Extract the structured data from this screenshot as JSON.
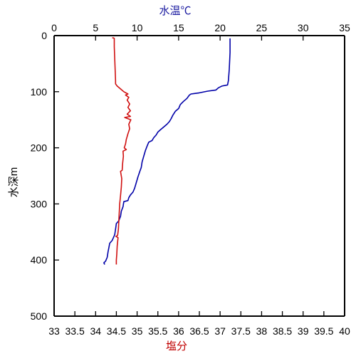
{
  "chart_data": {
    "type": "line",
    "top_axis": {
      "label": "水温℃",
      "label_color": "#1A1AA0",
      "range": [
        0,
        35
      ],
      "ticks": [
        "0",
        "5",
        "10",
        "15",
        "20",
        "25",
        "30",
        "35"
      ]
    },
    "bottom_axis": {
      "label": "塩分",
      "label_color": "#C00000",
      "range": [
        33,
        40
      ],
      "ticks": [
        "33",
        "33.5",
        "34",
        "34.5",
        "35",
        "35.5",
        "36",
        "36.5",
        "37",
        "37.5",
        "38",
        "38.5",
        "39",
        "39.5",
        "40"
      ]
    },
    "left_axis": {
      "label": "水深m",
      "range": [
        0,
        500
      ],
      "inverted": true,
      "ticks": [
        "0",
        "100",
        "200",
        "300",
        "400",
        "500"
      ]
    },
    "grid": false,
    "series": [
      {
        "axis": "top",
        "color": "#0000A8",
        "points": [
          [
            21.2,
            5
          ],
          [
            21.2,
            30
          ],
          [
            21.1,
            60
          ],
          [
            21.0,
            80
          ],
          [
            20.9,
            88
          ],
          [
            20.2,
            90
          ],
          [
            19.8,
            93
          ],
          [
            19.5,
            97
          ],
          [
            18.5,
            99
          ],
          [
            17.5,
            102
          ],
          [
            17.0,
            103
          ],
          [
            16.5,
            104
          ],
          [
            16.3,
            106
          ],
          [
            16.0,
            112
          ],
          [
            15.6,
            117
          ],
          [
            15.2,
            123
          ],
          [
            15.0,
            130
          ],
          [
            14.6,
            135
          ],
          [
            14.3,
            142
          ],
          [
            14.1,
            148
          ],
          [
            13.9,
            153
          ],
          [
            13.6,
            158
          ],
          [
            13.2,
            163
          ],
          [
            12.8,
            168
          ],
          [
            12.5,
            172
          ],
          [
            12.3,
            177
          ],
          [
            12.0,
            182
          ],
          [
            11.8,
            187
          ],
          [
            11.4,
            190
          ],
          [
            11.2,
            197
          ],
          [
            11.0,
            205
          ],
          [
            10.8,
            215
          ],
          [
            10.6,
            225
          ],
          [
            10.5,
            235
          ],
          [
            10.3,
            243
          ],
          [
            10.1,
            252
          ],
          [
            9.9,
            262
          ],
          [
            9.7,
            272
          ],
          [
            9.5,
            279
          ],
          [
            9.2,
            284
          ],
          [
            9.0,
            289
          ],
          [
            8.9,
            294
          ],
          [
            8.4,
            296
          ],
          [
            8.3,
            305
          ],
          [
            8.1,
            313
          ],
          [
            8.0,
            322
          ],
          [
            7.8,
            330
          ],
          [
            7.5,
            335
          ],
          [
            7.4,
            345
          ],
          [
            7.3,
            355
          ],
          [
            7.0,
            365
          ],
          [
            6.7,
            370
          ],
          [
            6.6,
            378
          ],
          [
            6.5,
            385
          ],
          [
            6.4,
            395
          ],
          [
            6.2,
            402
          ],
          [
            6.0,
            405
          ],
          [
            6.1,
            408
          ]
        ]
      },
      {
        "axis": "bottom",
        "color": "#D01010",
        "points": [
          [
            34.4,
            4
          ],
          [
            34.43,
            4
          ],
          [
            34.45,
            5
          ],
          [
            34.45,
            20
          ],
          [
            34.46,
            40
          ],
          [
            34.47,
            60
          ],
          [
            34.48,
            80
          ],
          [
            34.48,
            86
          ],
          [
            34.52,
            90
          ],
          [
            34.6,
            95
          ],
          [
            34.68,
            100
          ],
          [
            34.78,
            104
          ],
          [
            34.72,
            106
          ],
          [
            34.8,
            110
          ],
          [
            34.76,
            115
          ],
          [
            34.82,
            122
          ],
          [
            34.78,
            128
          ],
          [
            34.84,
            134
          ],
          [
            34.76,
            140
          ],
          [
            34.84,
            144
          ],
          [
            34.7,
            146
          ],
          [
            34.85,
            150
          ],
          [
            34.8,
            158
          ],
          [
            34.82,
            166
          ],
          [
            34.78,
            175
          ],
          [
            34.74,
            185
          ],
          [
            34.72,
            193
          ],
          [
            34.69,
            200
          ],
          [
            34.74,
            203
          ],
          [
            34.66,
            206
          ],
          [
            34.67,
            215
          ],
          [
            34.65,
            228
          ],
          [
            34.64,
            240
          ],
          [
            34.6,
            242
          ],
          [
            34.63,
            255
          ],
          [
            34.62,
            270
          ],
          [
            34.6,
            285
          ],
          [
            34.58,
            300
          ],
          [
            34.57,
            315
          ],
          [
            34.56,
            330
          ],
          [
            34.55,
            345
          ],
          [
            34.53,
            356
          ],
          [
            34.49,
            358
          ],
          [
            34.54,
            360
          ],
          [
            34.52,
            375
          ],
          [
            34.51,
            390
          ],
          [
            34.5,
            400
          ],
          [
            34.5,
            408
          ]
        ]
      }
    ]
  }
}
